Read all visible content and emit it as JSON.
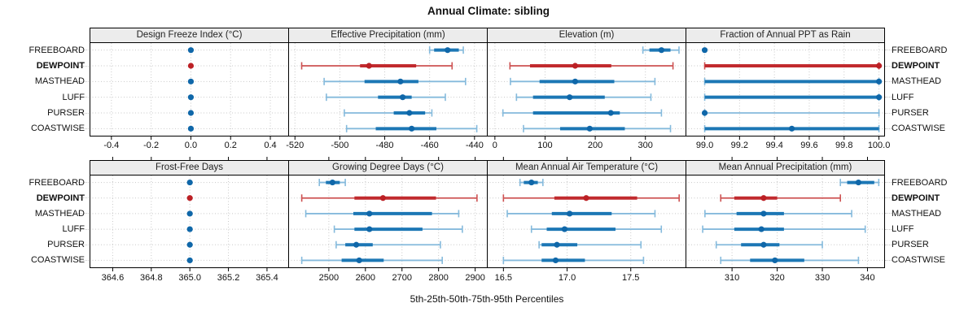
{
  "chart_data": {
    "type": "dotplot-percentile-intervals",
    "title": "Annual Climate: sibling",
    "xlabel": "5th-25th-50th-75th-95th Percentiles",
    "percentiles": [
      5,
      25,
      50,
      75,
      95
    ],
    "layout": {
      "rows": 2,
      "cols": 4,
      "grid": "dotted",
      "legend_position": "none"
    },
    "stations": [
      "FREEBOARD",
      "DEWPOINT",
      "MASTHEAD",
      "LUFF",
      "PURSER",
      "COASTWISE"
    ],
    "highlight_station": "DEWPOINT",
    "colors": {
      "blue_dot": "#0f67a9",
      "blue_thick": "#1c77b5",
      "blue_thin": "#85badc",
      "red_dot": "#bc2025",
      "red_thick": "#c12a2e",
      "red_thin": "#cd5252",
      "grid": "#c8c8c8",
      "border": "#000000",
      "header_bg": "#ececec",
      "text": "#111111"
    },
    "panels": [
      {
        "title": "Design Freeze Index (°C)",
        "xlim": [
          -0.51,
          0.49
        ],
        "tick_values": [
          -0.4,
          -0.2,
          0.0,
          0.2,
          0.4
        ],
        "tick_labels": [
          "-0.4",
          "-0.2",
          "0.0",
          "0.2",
          "0.4"
        ],
        "values": {
          "FREEBOARD": [
            0,
            0,
            0,
            0,
            0
          ],
          "DEWPOINT": [
            0,
            0,
            0,
            0,
            0
          ],
          "MASTHEAD": [
            0,
            0,
            0,
            0,
            0
          ],
          "LUFF": [
            0,
            0,
            0,
            0,
            0
          ],
          "PURSER": [
            0,
            0,
            0,
            0,
            0
          ],
          "COASTWISE": [
            0,
            0,
            0,
            0,
            0
          ]
        }
      },
      {
        "title": "Effective Precipitation (mm)",
        "xlim": [
          -523,
          -434.5
        ],
        "tick_values": [
          -520,
          -500,
          -480,
          -460,
          -440
        ],
        "tick_labels": [
          "-520",
          "-500",
          "-480",
          "-460",
          "-440"
        ],
        "values": {
          "FREEBOARD": [
            -460,
            -458,
            -452,
            -447,
            -445
          ],
          "DEWPOINT": [
            -517,
            -491,
            -487,
            -466,
            -450
          ],
          "MASTHEAD": [
            -507,
            -489,
            -473,
            -465,
            -444
          ],
          "LUFF": [
            -506,
            -483,
            -472,
            -468,
            -453
          ],
          "PURSER": [
            -498,
            -476,
            -469,
            -462,
            -459
          ],
          "COASTWISE": [
            -497,
            -484,
            -468,
            -457,
            -439
          ]
        }
      },
      {
        "title": "Elevation (m)",
        "xlim": [
          -16,
          380
        ],
        "tick_values": [
          0,
          100,
          200,
          300
        ],
        "tick_labels": [
          "0",
          "100",
          "200",
          "300"
        ],
        "values": {
          "FREEBOARD": [
            295,
            308,
            332,
            350,
            367
          ],
          "DEWPOINT": [
            30,
            70,
            160,
            232,
            355
          ],
          "MASTHEAD": [
            31,
            89,
            160,
            238,
            319
          ],
          "LUFF": [
            43,
            76,
            149,
            219,
            311
          ],
          "PURSER": [
            16,
            76,
            231,
            249,
            332
          ],
          "COASTWISE": [
            57,
            130,
            189,
            259,
            350
          ]
        }
      },
      {
        "title": "Fraction of Annual PPT as Rain",
        "xlim": [
          98.89,
          100.03
        ],
        "tick_values": [
          99.0,
          99.2,
          99.4,
          99.6,
          99.8,
          100.0
        ],
        "tick_labels": [
          "99.0",
          "99.2",
          "99.4",
          "99.6",
          "99.8",
          "100.0"
        ],
        "values": {
          "FREEBOARD": [
            99.0,
            99.0,
            99.0,
            99.0,
            99.0
          ],
          "DEWPOINT": [
            99.0,
            99.0,
            100.0,
            100.0,
            100.0
          ],
          "MASTHEAD": [
            99.0,
            99.0,
            100.0,
            100.0,
            100.0
          ],
          "LUFF": [
            99.0,
            99.0,
            100.0,
            100.0,
            100.0
          ],
          "PURSER": [
            99.0,
            99.0,
            99.0,
            99.0,
            100.0
          ],
          "COASTWISE": [
            99.0,
            99.0,
            99.5,
            100.0,
            100.0
          ]
        }
      },
      {
        "title": "Frost-Free Days",
        "xlim": [
          364.48,
          365.51
        ],
        "tick_values": [
          364.6,
          364.8,
          365.0,
          365.2,
          365.4
        ],
        "tick_labels": [
          "364.6",
          "364.8",
          "365.0",
          "365.2",
          "365.4"
        ],
        "values": {
          "FREEBOARD": [
            365,
            365,
            365,
            365,
            365
          ],
          "DEWPOINT": [
            365,
            365,
            365,
            365,
            365
          ],
          "MASTHEAD": [
            365,
            365,
            365,
            365,
            365
          ],
          "LUFF": [
            365,
            365,
            365,
            365,
            365
          ],
          "PURSER": [
            365,
            365,
            365,
            365,
            365
          ],
          "COASTWISE": [
            365,
            365,
            365,
            365,
            365
          ]
        }
      },
      {
        "title": "Growing Degree Days (°C)",
        "xlim": [
          2389,
          2932
        ],
        "tick_values": [
          2500,
          2600,
          2700,
          2800,
          2900
        ],
        "tick_labels": [
          "2500",
          "2600",
          "2700",
          "2800",
          "2900"
        ],
        "values": {
          "FREEBOARD": [
            2474,
            2492,
            2510,
            2530,
            2545
          ],
          "DEWPOINT": [
            2426,
            2570,
            2648,
            2793,
            2905
          ],
          "MASTHEAD": [
            2437,
            2567,
            2611,
            2782,
            2855
          ],
          "LUFF": [
            2515,
            2570,
            2611,
            2756,
            2865
          ],
          "PURSER": [
            2520,
            2545,
            2575,
            2620,
            2805
          ],
          "COASTWISE": [
            2426,
            2535,
            2583,
            2650,
            2810
          ]
        }
      },
      {
        "title": "Mean Annual Air Temperature (°C)",
        "xlim": [
          16.37,
          17.93
        ],
        "tick_values": [
          16.5,
          17.0,
          17.5
        ],
        "tick_labels": [
          "16.5",
          "17.0",
          "17.5"
        ],
        "values": {
          "FREEBOARD": [
            16.63,
            16.66,
            16.72,
            16.77,
            16.81
          ],
          "DEWPOINT": [
            16.5,
            16.9,
            17.15,
            17.55,
            17.88
          ],
          "MASTHEAD": [
            16.53,
            16.88,
            17.02,
            17.35,
            17.69
          ],
          "LUFF": [
            16.72,
            16.84,
            16.98,
            17.38,
            17.74
          ],
          "PURSER": [
            16.78,
            16.8,
            16.92,
            17.08,
            17.58
          ],
          "COASTWISE": [
            16.5,
            16.8,
            16.91,
            17.14,
            17.6
          ]
        }
      },
      {
        "title": "Mean Annual Precipitation (mm)",
        "xlim": [
          299.7,
          343.7
        ],
        "tick_values": [
          310,
          320,
          330,
          340
        ],
        "tick_labels": [
          "310",
          "320",
          "330",
          "340"
        ],
        "values": {
          "FREEBOARD": [
            334,
            335.5,
            338,
            341.5,
            342.5
          ],
          "DEWPOINT": [
            307.5,
            310.5,
            317,
            320,
            334
          ],
          "MASTHEAD": [
            304,
            311,
            317,
            321.5,
            336.5
          ],
          "LUFF": [
            303.5,
            310.5,
            316.5,
            321.5,
            339.5
          ],
          "PURSER": [
            306.5,
            312,
            317,
            320.5,
            330
          ],
          "COASTWISE": [
            307.5,
            314,
            319.5,
            326,
            338
          ]
        }
      }
    ]
  }
}
